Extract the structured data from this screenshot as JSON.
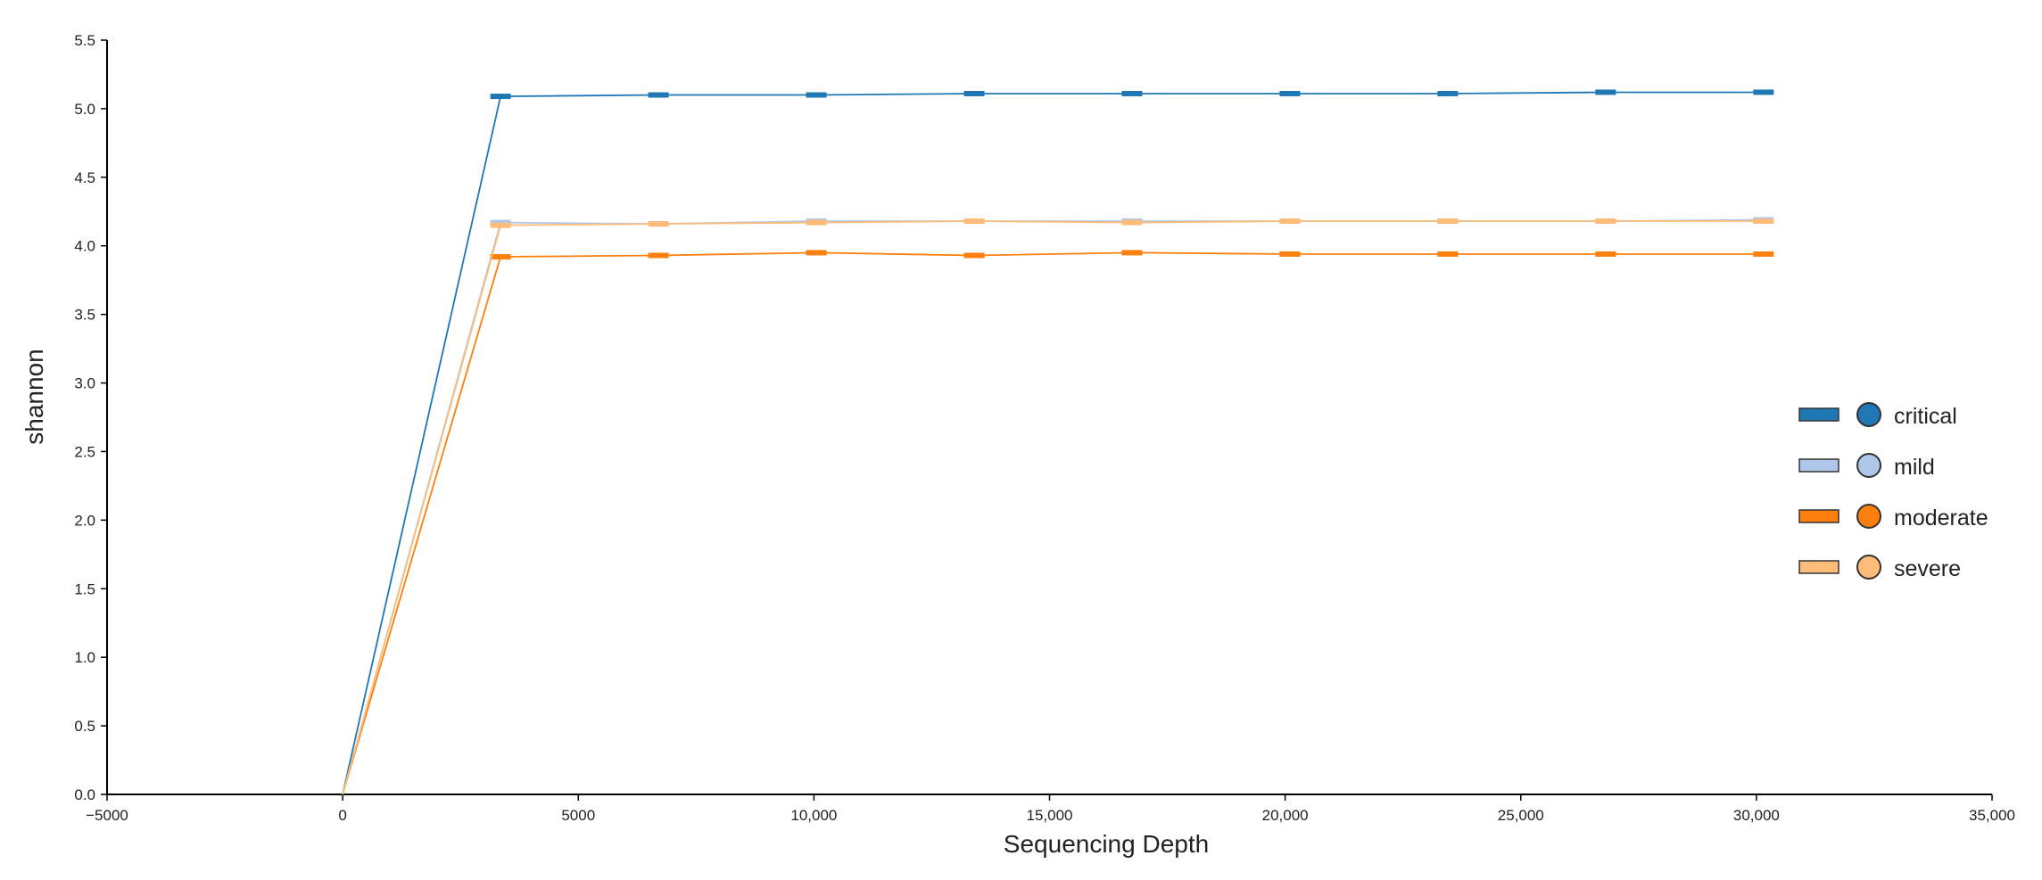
{
  "chart_data": {
    "type": "line",
    "xlabel": "Sequencing Depth",
    "ylabel": "shannon",
    "xlim": [
      -5000,
      35000
    ],
    "ylim": [
      0,
      5.5
    ],
    "x_ticks": [
      -5000,
      0,
      5000,
      10000,
      15000,
      20000,
      25000,
      30000,
      35000
    ],
    "x_tick_labels": [
      "−5000",
      "0",
      "5000",
      "10,000",
      "15,000",
      "20,000",
      "25,000",
      "30,000",
      "35,000"
    ],
    "y_ticks": [
      0,
      0.5,
      1.0,
      1.5,
      2.0,
      2.5,
      3.0,
      3.5,
      4.0,
      4.5,
      5.0,
      5.5
    ],
    "y_tick_labels": [
      "0.0",
      "0.5",
      "1.0",
      "1.5",
      "2.0",
      "2.5",
      "3.0",
      "3.5",
      "4.0",
      "4.5",
      "5.0",
      "5.5"
    ],
    "x": [
      0,
      3350,
      6700,
      10050,
      13400,
      16750,
      20100,
      23450,
      26800,
      30150
    ],
    "grid": false,
    "legend_position": "right",
    "series": [
      {
        "name": "critical",
        "color": "#1f77b4",
        "values": [
          0,
          5.09,
          5.1,
          5.1,
          5.11,
          5.11,
          5.11,
          5.11,
          5.12,
          5.12
        ]
      },
      {
        "name": "mild",
        "color": "#aec7e8",
        "values": [
          0,
          4.17,
          4.16,
          4.18,
          4.18,
          4.18,
          4.18,
          4.18,
          4.18,
          4.19
        ]
      },
      {
        "name": "moderate",
        "color": "#ff7f0e",
        "values": [
          0,
          3.92,
          3.93,
          3.95,
          3.93,
          3.95,
          3.94,
          3.94,
          3.94,
          3.94
        ]
      },
      {
        "name": "severe",
        "color": "#ffbb78",
        "values": [
          0,
          4.15,
          4.16,
          4.17,
          4.18,
          4.17,
          4.18,
          4.18,
          4.18,
          4.18
        ]
      }
    ]
  }
}
